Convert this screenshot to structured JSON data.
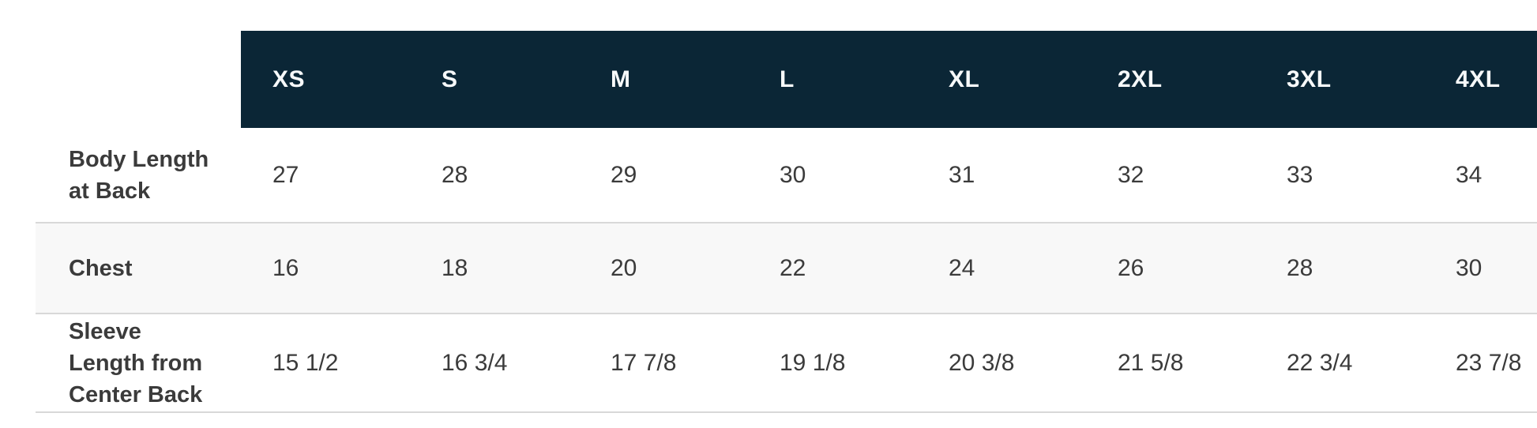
{
  "chart_data": {
    "type": "table",
    "columns": [
      "XS",
      "S",
      "M",
      "L",
      "XL",
      "2XL",
      "3XL",
      "4XL"
    ],
    "rows": [
      {
        "label": "Body Length at Back",
        "label_lines": [
          "Body Length",
          "at Back"
        ],
        "values": [
          "27",
          "28",
          "29",
          "30",
          "31",
          "32",
          "33",
          "34"
        ]
      },
      {
        "label": "Chest",
        "label_lines": [
          "Chest"
        ],
        "values": [
          "16",
          "18",
          "20",
          "22",
          "24",
          "26",
          "28",
          "30"
        ]
      },
      {
        "label": "Sleeve Length from Center Back",
        "label_lines": [
          "Sleeve",
          "Length from",
          "Center Back"
        ],
        "values": [
          "15 1/2",
          "16 3/4",
          "17 7/8",
          "19 1/8",
          "20 3/8",
          "21 5/8",
          "22 3/4",
          "23 7/8"
        ]
      }
    ],
    "layout": {
      "legend": "none",
      "grid": "horizontal row separators only",
      "header_position": "top",
      "note": "rightmost column is clipped by the viewport edge"
    }
  },
  "colors": {
    "header_bg": "#0b2636",
    "header_text": "#f7f9fa",
    "text": "#3b3b3b",
    "alt_row_bg": "#f8f8f8",
    "border": "#d8d8d8"
  }
}
